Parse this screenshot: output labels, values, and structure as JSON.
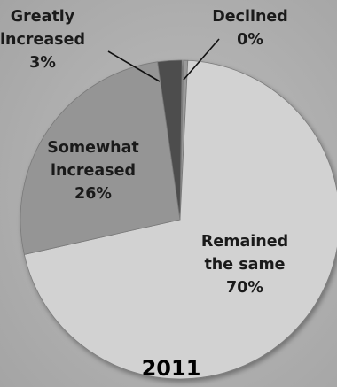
{
  "chart_data": {
    "type": "pie",
    "title": "2011",
    "slices": [
      {
        "label": "Declined",
        "value": 0,
        "color": "#9a9a9a"
      },
      {
        "label": "Remained the same",
        "value": 70,
        "color": "#d2d2d2"
      },
      {
        "label": "Somewhat increased",
        "value": 26,
        "color": "#959595"
      },
      {
        "label": "Greatly increased",
        "value": 3,
        "color": "#4d4d4d"
      }
    ],
    "value_labels": [
      "0%",
      "70%",
      "26%",
      "3%"
    ],
    "label_lines": [
      [
        "Declined",
        "0%"
      ],
      [
        "Remained",
        "the same",
        "70%"
      ],
      [
        "Somewhat",
        "increased",
        "26%"
      ],
      [
        "Greatly",
        "increased",
        "3%"
      ]
    ]
  }
}
